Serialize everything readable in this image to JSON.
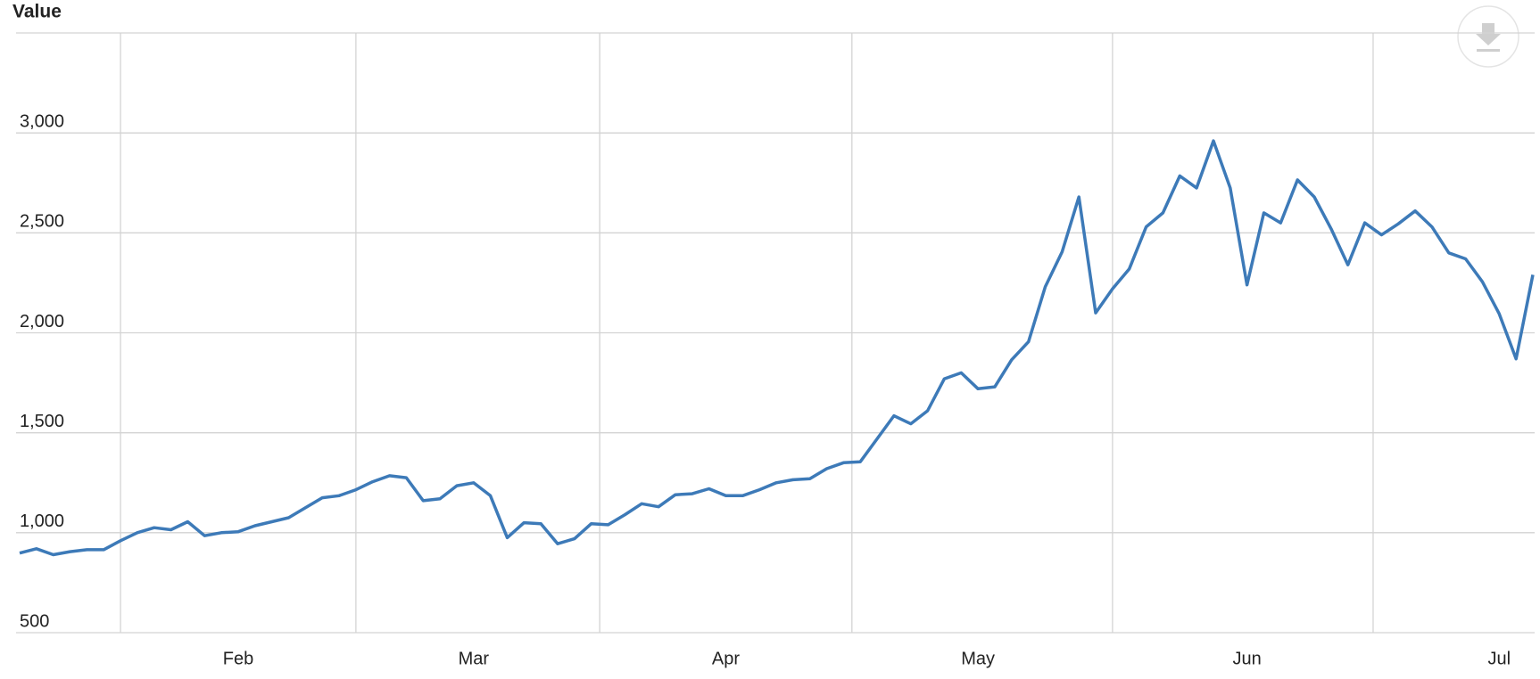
{
  "chart_data": {
    "type": "line",
    "y_label": "Value",
    "categories": [
      null,
      null,
      null,
      null,
      null,
      null,
      null,
      null,
      null,
      null,
      null,
      null,
      null,
      "Feb",
      null,
      null,
      null,
      null,
      null,
      null,
      null,
      null,
      null,
      null,
      null,
      null,
      null,
      "Mar",
      null,
      null,
      null,
      null,
      null,
      null,
      null,
      null,
      null,
      null,
      null,
      null,
      null,
      null,
      "Apr",
      null,
      null,
      null,
      null,
      null,
      null,
      null,
      null,
      null,
      null,
      null,
      null,
      null,
      null,
      "May",
      null,
      null,
      null,
      null,
      null,
      null,
      null,
      null,
      null,
      null,
      null,
      null,
      null,
      null,
      null,
      "Jun",
      null,
      null,
      null,
      null,
      null,
      null,
      null,
      null,
      null,
      null,
      null,
      null,
      null,
      null,
      "Jul",
      null,
      null
    ],
    "series": [
      {
        "name": "Value",
        "color": "#3d7ab8",
        "values": [
          898,
          920,
          890,
          905,
          915,
          915,
          960,
          1000,
          1025,
          1015,
          1055,
          985,
          1000,
          1005,
          1035,
          1055,
          1075,
          1125,
          1175,
          1185,
          1215,
          1255,
          1285,
          1275,
          1160,
          1170,
          1235,
          1250,
          1185,
          975,
          1050,
          1045,
          945,
          970,
          1045,
          1040,
          1090,
          1145,
          1130,
          1190,
          1195,
          1220,
          1185,
          1185,
          1215,
          1250,
          1265,
          1270,
          1320,
          1350,
          1355,
          1470,
          1585,
          1545,
          1610,
          1770,
          1800,
          1720,
          1730,
          1865,
          1955,
          2230,
          2405,
          2680,
          2100,
          2220,
          2320,
          2530,
          2600,
          2785,
          2725,
          2960,
          2725,
          2240,
          2600,
          2550,
          2765,
          2680,
          2520,
          2340,
          2550,
          2490,
          2545,
          2610,
          2530,
          2400,
          2370,
          2255,
          2095,
          1870,
          2290
        ]
      }
    ],
    "ylim": [
      500,
      3500
    ],
    "yticks": [
      500,
      {
        "value": 1000,
        "label": "1,000"
      },
      {
        "value": 1500,
        "label": "1,500"
      },
      {
        "value": 2000,
        "label": "2,000"
      },
      {
        "value": 2500,
        "label": "2,500"
      },
      {
        "value": 3000,
        "label": "3,000"
      }
    ],
    "grid": true
  }
}
